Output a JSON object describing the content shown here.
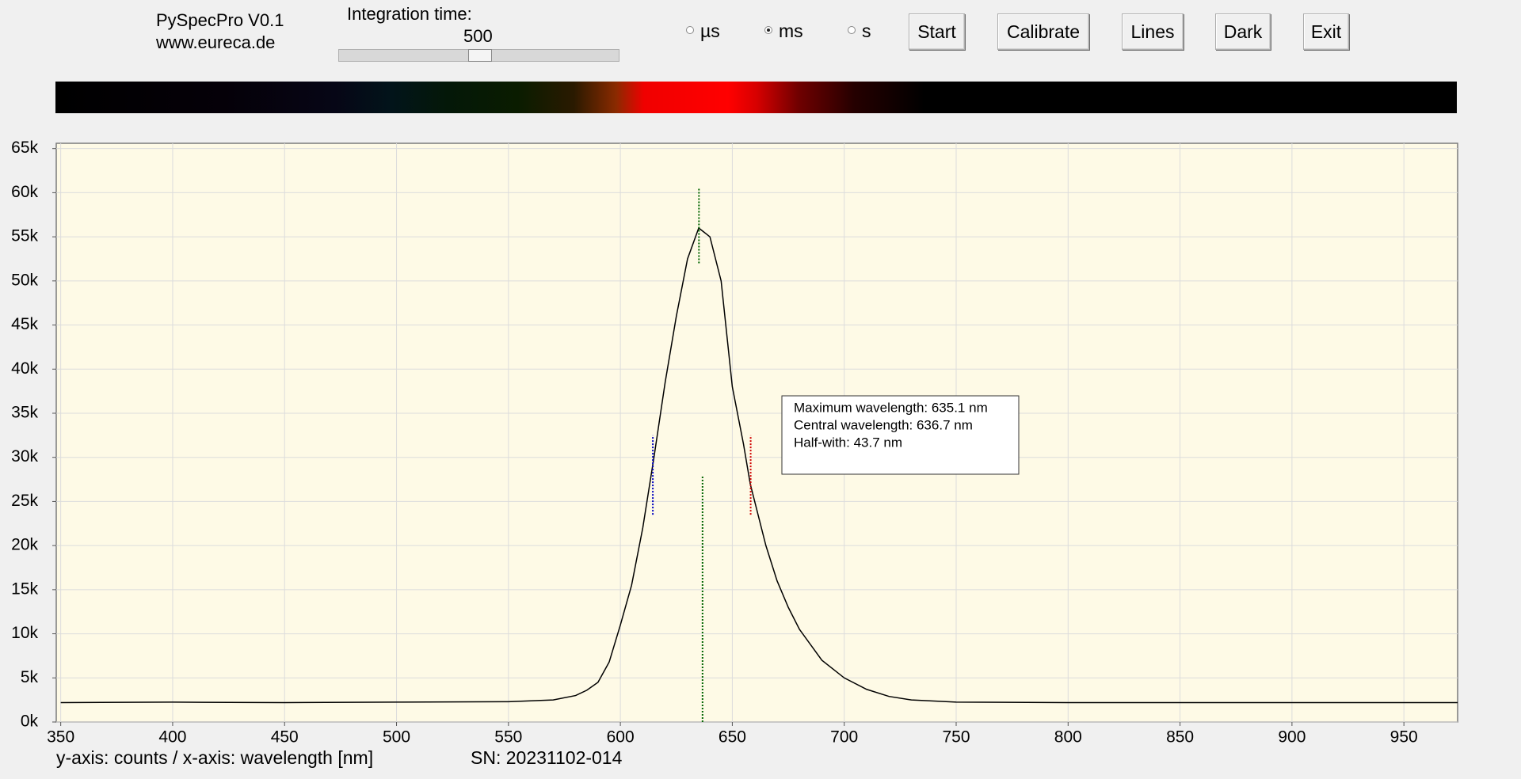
{
  "header": {
    "app": "PySpecPro V0.1",
    "url": "www.eureca.de"
  },
  "controls": {
    "integration_label": "Integration time:",
    "integration_value": 500,
    "units": [
      "µs",
      "ms",
      "s"
    ],
    "selected_unit": 1,
    "buttons": [
      "Start",
      "Calibrate",
      "Lines",
      "Dark",
      "Exit"
    ]
  },
  "footer": {
    "axes": "y-axis: counts / x-axis: wavelength [nm]",
    "serial": "SN: 20231102-014"
  },
  "chart_data": {
    "type": "line",
    "color": "#000000",
    "grid": true,
    "x": [
      350,
      400,
      450,
      500,
      550,
      570,
      580,
      585,
      590,
      595,
      600,
      605,
      610,
      615,
      620,
      625,
      630,
      635,
      640,
      645,
      650,
      655,
      658,
      660,
      665,
      670,
      675,
      680,
      690,
      700,
      710,
      720,
      730,
      750,
      800,
      850,
      900,
      950,
      974
    ],
    "values": [
      2200,
      2250,
      2200,
      2250,
      2300,
      2500,
      3000,
      3600,
      4500,
      6800,
      11000,
      15500,
      22000,
      30000,
      38500,
      46000,
      52500,
      56000,
      55000,
      50000,
      38000,
      31500,
      27000,
      25000,
      20000,
      16000,
      13000,
      10500,
      7000,
      5000,
      3700,
      2900,
      2500,
      2250,
      2200,
      2200,
      2200,
      2200,
      2200
    ],
    "xlim": [
      348,
      974
    ],
    "ylim": [
      0,
      65600
    ],
    "xticks": [
      350,
      400,
      450,
      500,
      550,
      600,
      650,
      700,
      750,
      800,
      850,
      900,
      950
    ],
    "yticks": [
      {
        "value": 0,
        "label": "0k"
      },
      {
        "value": 5000,
        "label": "5k"
      },
      {
        "value": 10000,
        "label": "10k"
      },
      {
        "value": 15000,
        "label": "15k"
      },
      {
        "value": 20000,
        "label": "20k"
      },
      {
        "value": 25000,
        "label": "25k"
      },
      {
        "value": 30000,
        "label": "30k"
      },
      {
        "value": 35000,
        "label": "35k"
      },
      {
        "value": 40000,
        "label": "40k"
      },
      {
        "value": 45000,
        "label": "45k"
      },
      {
        "value": 50000,
        "label": "50k"
      },
      {
        "value": 55000,
        "label": "55k"
      },
      {
        "value": 60000,
        "label": "60k"
      },
      {
        "value": 65000,
        "label": "65k"
      }
    ],
    "markers": [
      {
        "x": 635.1,
        "y": [
          52000,
          60500
        ],
        "color": "#006400"
      },
      {
        "x": 636.7,
        "y": [
          0,
          28000
        ],
        "color": "#006400"
      },
      {
        "x": 614.5,
        "y": [
          23500,
          32500
        ],
        "color": "#0000c0"
      },
      {
        "x": 658.2,
        "y": [
          23500,
          32500
        ],
        "color": "#d00000"
      }
    ],
    "annotations": [
      "Maximum wavelength: 635.1 nm",
      "Central wavelength: 636.7 nm",
      "Half-with: 43.7 nm"
    ]
  }
}
